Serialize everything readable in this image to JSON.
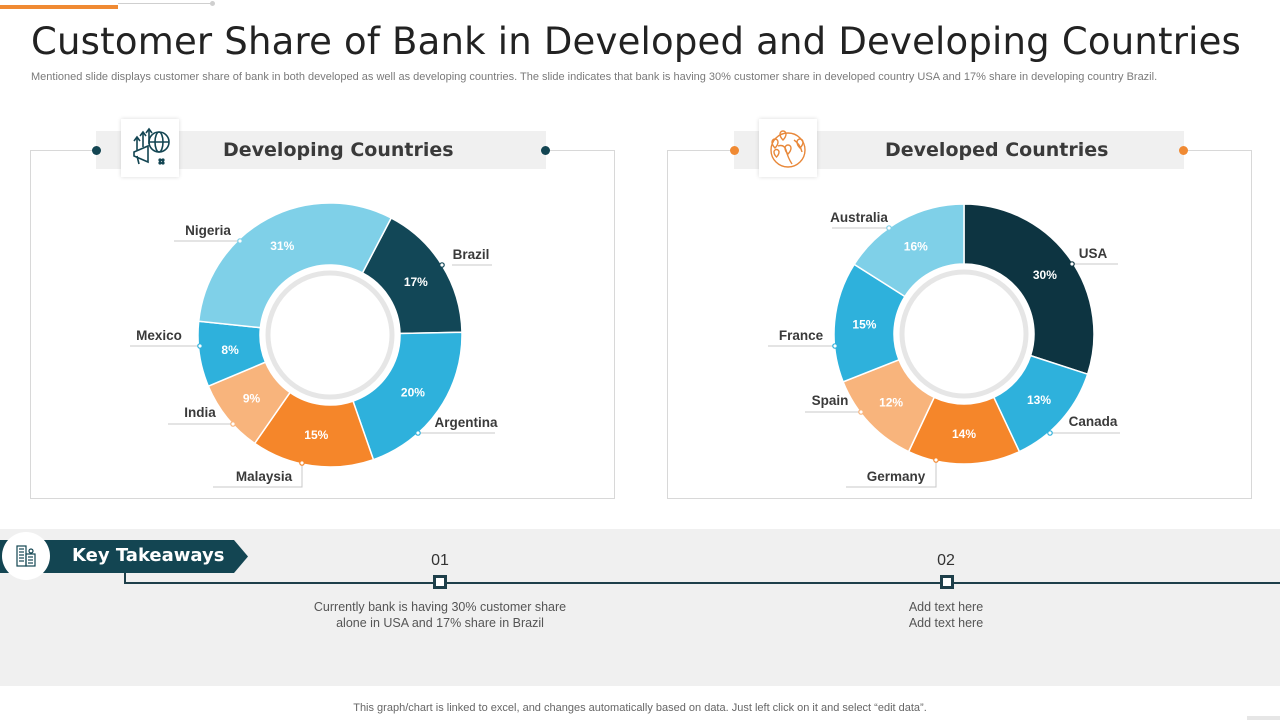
{
  "page": {
    "title": "Customer Share of Bank in Developed and Developing Countries",
    "subtitle": "Mentioned slide displays customer share of bank in both developed as well as developing countries. The slide indicates that bank is having 30% customer share in developed country USA and 17% share in developing country Brazil.",
    "footer": "This graph/chart is linked to excel,  and changes automatically based on data. Just left click on it and select “edit data”."
  },
  "colors": {
    "accent_orange": "#f08a33",
    "dark_teal": "#0d3a48",
    "navy": "#134552",
    "mid_blue": "#2eb1dc",
    "light_blue": "#7fd0e8",
    "orange": "#f5862a",
    "peach": "#f8b47c"
  },
  "panels": {
    "developing": {
      "title": "Developing Countries",
      "icon": "megaphone-globe-growth-icon"
    },
    "developed": {
      "title": "Developed Countries",
      "icon": "globe-location-pins-icon"
    }
  },
  "chart_data": [
    {
      "type": "pie",
      "title": "Developing Countries",
      "subtype": "donut",
      "categories": [
        "Brazil",
        "Argentina",
        "Malaysia",
        "India",
        "Mexico",
        "Nigeria"
      ],
      "values": [
        17,
        20,
        15,
        9,
        8,
        31
      ],
      "labels": [
        "17%",
        "20%",
        "15%",
        "9%",
        "8%",
        "31%"
      ],
      "colors": [
        "#124757",
        "#2eb1dc",
        "#f5862a",
        "#f8b47c",
        "#2eb1dc",
        "#7fd0e8"
      ],
      "start_angle_deg": 27.6,
      "direction": "clockwise"
    },
    {
      "type": "pie",
      "title": "Developed Countries",
      "subtype": "donut",
      "categories": [
        "USA",
        "Canada",
        "Germany",
        "Spain",
        "France",
        "Australia"
      ],
      "values": [
        30,
        13,
        14,
        12,
        15,
        16
      ],
      "labels": [
        "30%",
        "13%",
        "14%",
        "12%",
        "15%",
        "16%"
      ],
      "colors": [
        "#0d3441",
        "#2eb1dc",
        "#f5862a",
        "#f8b47c",
        "#2eb1dc",
        "#7fd0e8"
      ],
      "start_angle_deg": 0,
      "direction": "clockwise"
    }
  ],
  "key_takeaways": {
    "label": "Key Takeaways",
    "icon": "buildings-icon",
    "items": [
      {
        "number": "01",
        "line1": "Currently  bank is having  30% customer share",
        "line2": "alone in USA and  17% share in Brazil"
      },
      {
        "number": "02",
        "line1": "Add text here",
        "line2": "Add text here"
      }
    ]
  }
}
